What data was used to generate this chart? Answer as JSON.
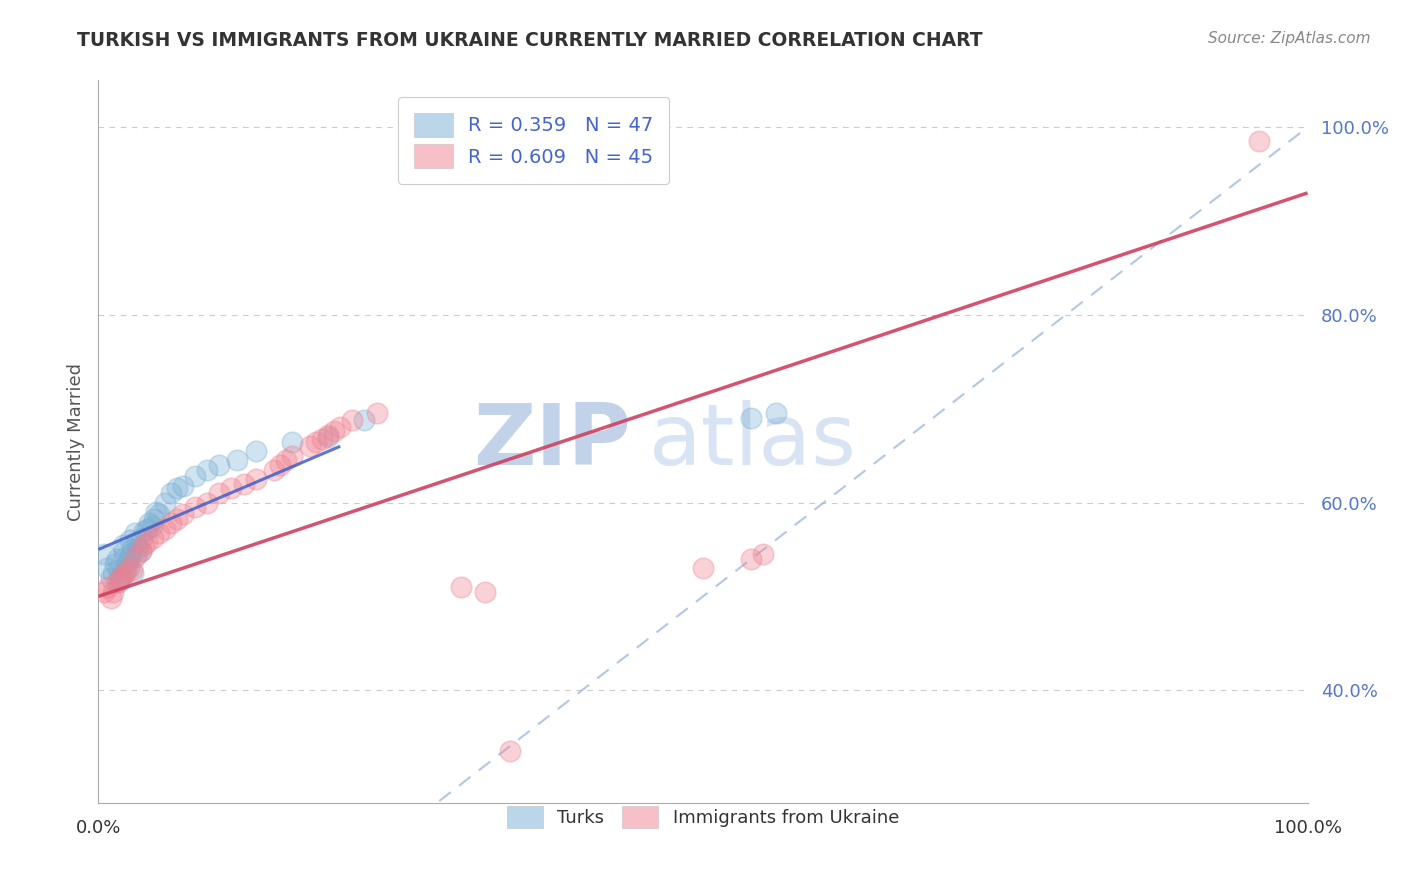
{
  "title": "TURKISH VS IMMIGRANTS FROM UKRAINE CURRENTLY MARRIED CORRELATION CHART",
  "source": "Source: ZipAtlas.com",
  "ylabel": "Currently Married",
  "ytick_labels": [
    "40.0%",
    "60.0%",
    "80.0%",
    "100.0%"
  ],
  "ytick_values": [
    0.4,
    0.6,
    0.8,
    1.0
  ],
  "legend_turks": "R = 0.359   N = 47",
  "legend_ukraine": "R = 0.609   N = 45",
  "turks_color": "#7BAFD4",
  "ukraine_color": "#F08090",
  "turks_line_color": "#4060C8",
  "ukraine_line_color": "#D04060",
  "ref_line_color": "#A0B8E0",
  "watermark_zip": "ZIP",
  "watermark_atlas": "atlas",
  "watermark_color": "#C8D8F0",
  "turks_x": [
    0.005,
    0.007,
    0.01,
    0.012,
    0.014,
    0.015,
    0.016,
    0.017,
    0.018,
    0.019,
    0.02,
    0.021,
    0.022,
    0.023,
    0.024,
    0.025,
    0.026,
    0.027,
    0.028,
    0.029,
    0.03,
    0.031,
    0.032,
    0.033,
    0.035,
    0.036,
    0.038,
    0.04,
    0.042,
    0.044,
    0.046,
    0.048,
    0.05,
    0.055,
    0.06,
    0.065,
    0.07,
    0.08,
    0.09,
    0.1,
    0.115,
    0.13,
    0.16,
    0.19,
    0.22,
    0.54,
    0.56
  ],
  "turks_y": [
    0.545,
    0.53,
    0.52,
    0.525,
    0.535,
    0.54,
    0.528,
    0.515,
    0.52,
    0.522,
    0.555,
    0.548,
    0.542,
    0.535,
    0.53,
    0.54,
    0.56,
    0.545,
    0.55,
    0.525,
    0.568,
    0.558,
    0.545,
    0.552,
    0.548,
    0.562,
    0.57,
    0.572,
    0.578,
    0.575,
    0.582,
    0.59,
    0.588,
    0.6,
    0.61,
    0.615,
    0.618,
    0.628,
    0.635,
    0.64,
    0.645,
    0.655,
    0.665,
    0.67,
    0.688,
    0.69,
    0.695
  ],
  "ukraine_x": [
    0.005,
    0.008,
    0.01,
    0.012,
    0.015,
    0.018,
    0.02,
    0.022,
    0.025,
    0.028,
    0.03,
    0.035,
    0.038,
    0.04,
    0.045,
    0.05,
    0.055,
    0.06,
    0.065,
    0.07,
    0.08,
    0.09,
    0.1,
    0.11,
    0.12,
    0.13,
    0.145,
    0.15,
    0.155,
    0.16,
    0.175,
    0.18,
    0.185,
    0.19,
    0.195,
    0.2,
    0.21,
    0.23,
    0.3,
    0.32,
    0.5,
    0.54,
    0.55,
    0.96,
    0.34
  ],
  "ukraine_y": [
    0.505,
    0.51,
    0.498,
    0.505,
    0.515,
    0.518,
    0.522,
    0.525,
    0.53,
    0.528,
    0.542,
    0.548,
    0.555,
    0.558,
    0.562,
    0.568,
    0.572,
    0.578,
    0.582,
    0.588,
    0.595,
    0.6,
    0.61,
    0.615,
    0.62,
    0.625,
    0.635,
    0.64,
    0.645,
    0.65,
    0.66,
    0.665,
    0.668,
    0.672,
    0.676,
    0.68,
    0.688,
    0.695,
    0.51,
    0.505,
    0.53,
    0.54,
    0.545,
    0.985,
    0.335
  ],
  "xlim": [
    0,
    1.0
  ],
  "ylim": [
    0.28,
    1.05
  ],
  "turks_line": [
    0.0,
    0.55,
    0.2,
    0.66
  ],
  "ukraine_line": [
    0.0,
    0.5,
    1.0,
    0.93
  ]
}
